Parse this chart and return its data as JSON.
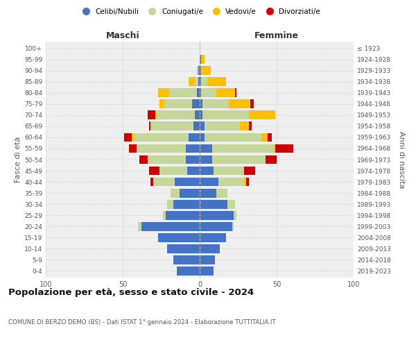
{
  "age_groups": [
    "0-4",
    "5-9",
    "10-14",
    "15-19",
    "20-24",
    "25-29",
    "30-34",
    "35-39",
    "40-44",
    "45-49",
    "50-54",
    "55-59",
    "60-64",
    "65-69",
    "70-74",
    "75-79",
    "80-84",
    "85-89",
    "90-94",
    "95-99",
    "100+"
  ],
  "birth_years": [
    "2019-2023",
    "2014-2018",
    "2009-2013",
    "2004-2008",
    "1999-2003",
    "1994-1998",
    "1989-1993",
    "1984-1988",
    "1979-1983",
    "1974-1978",
    "1969-1973",
    "1964-1968",
    "1959-1963",
    "1954-1958",
    "1949-1953",
    "1944-1948",
    "1939-1943",
    "1934-1938",
    "1929-1933",
    "1924-1928",
    "≤ 1923"
  ],
  "maschi_celibi": [
    15,
    17,
    21,
    27,
    38,
    22,
    17,
    13,
    16,
    8,
    9,
    9,
    7,
    4,
    3,
    5,
    2,
    1,
    1,
    0,
    0
  ],
  "maschi_coniugati": [
    0,
    0,
    0,
    0,
    2,
    2,
    4,
    6,
    14,
    18,
    25,
    32,
    36,
    28,
    25,
    18,
    18,
    2,
    1,
    0,
    0
  ],
  "maschi_vedovi": [
    0,
    0,
    0,
    0,
    0,
    0,
    0,
    0,
    0,
    0,
    0,
    0,
    1,
    0,
    1,
    3,
    7,
    4,
    0,
    0,
    0
  ],
  "maschi_divorziati": [
    0,
    0,
    0,
    0,
    0,
    0,
    0,
    0,
    2,
    7,
    5,
    5,
    5,
    1,
    5,
    0,
    0,
    0,
    0,
    0,
    0
  ],
  "femmine_celibi": [
    9,
    10,
    13,
    17,
    21,
    22,
    18,
    11,
    12,
    9,
    8,
    8,
    3,
    3,
    2,
    2,
    1,
    1,
    1,
    1,
    0
  ],
  "femmine_coniugati": [
    0,
    0,
    0,
    0,
    1,
    2,
    5,
    7,
    17,
    20,
    35,
    40,
    37,
    23,
    30,
    17,
    10,
    4,
    0,
    0,
    0
  ],
  "femmine_vedovi": [
    0,
    0,
    0,
    0,
    0,
    0,
    0,
    0,
    1,
    0,
    0,
    1,
    4,
    6,
    17,
    14,
    12,
    12,
    6,
    2,
    0
  ],
  "femmine_divorziati": [
    0,
    0,
    0,
    0,
    0,
    0,
    0,
    0,
    2,
    7,
    7,
    12,
    3,
    2,
    0,
    2,
    1,
    0,
    0,
    0,
    0
  ],
  "colors": {
    "celibi": "#4472c4",
    "coniugati": "#c5d89a",
    "vedovi": "#ffc000",
    "divorziati": "#cc0000"
  },
  "legend_labels": [
    "Celibi/Nubili",
    "Coniugati/e",
    "Vedovi/e",
    "Divorziati/e"
  ],
  "title": "Popolazione per età, sesso e stato civile - 2024",
  "subtitle": "COMUNE DI BERZO DEMO (BS) - Dati ISTAT 1° gennaio 2024 - Elaborazione TUTTITALIA.IT",
  "xlabel_left": "Maschi",
  "xlabel_right": "Femmine",
  "ylabel": "Fasce di età",
  "ylabel_right": "Anni di nascita",
  "xlim": 100,
  "background_color": "#ffffff",
  "plot_bg_color": "#efefef",
  "grid_color": "#cccccc",
  "bar_height": 0.8
}
